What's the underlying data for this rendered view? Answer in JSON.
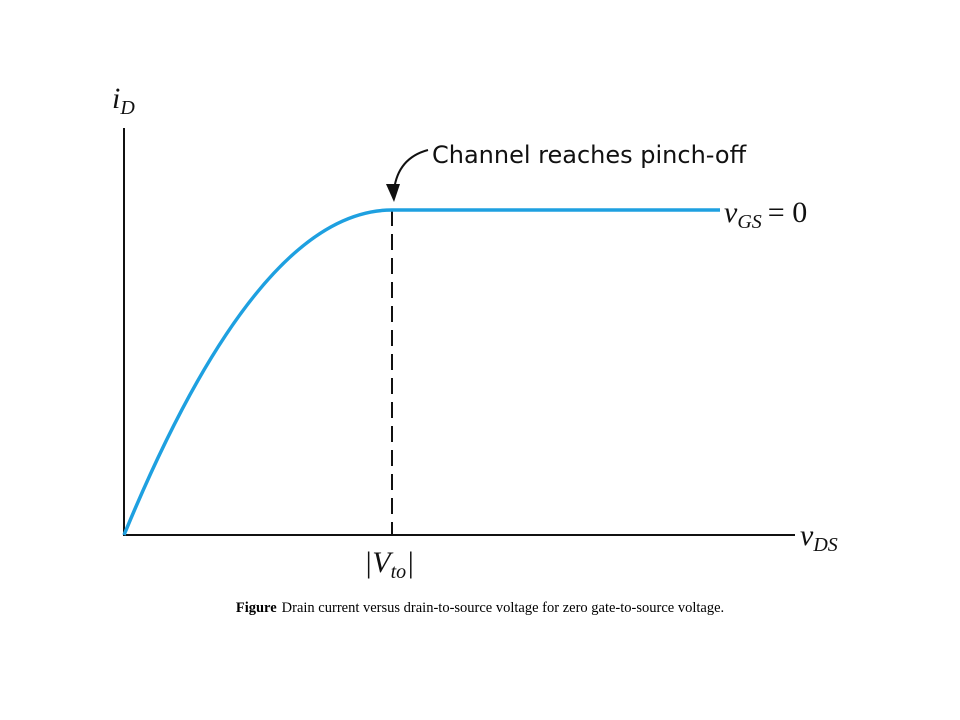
{
  "y_axis_label": {
    "main": "i",
    "sub": "D"
  },
  "x_axis_label": {
    "main": "v",
    "sub": "DS"
  },
  "annotation": "Channel reaches pinch-off",
  "curve_label": {
    "main": "v",
    "sub": "GS",
    "suffix": "= 0"
  },
  "marker_label": {
    "prefix": "|V",
    "sub": "to",
    "suffix": "|"
  },
  "caption": {
    "label": "Figure",
    "text": "Drain current versus drain-to-source voltage for zero gate-to-source voltage."
  }
}
